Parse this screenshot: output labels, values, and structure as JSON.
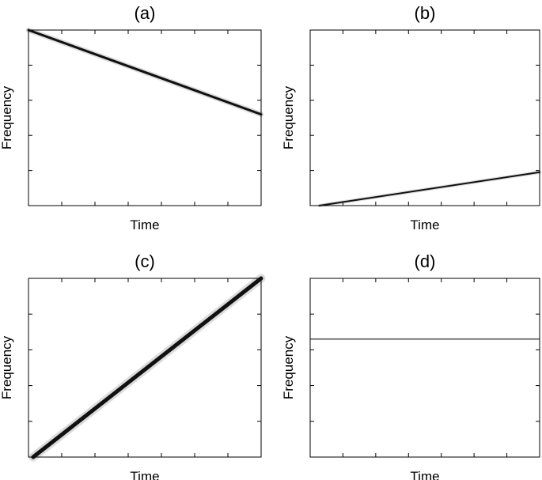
{
  "chart_data": [
    {
      "type": "line",
      "title": "(a)",
      "xlabel": "Time",
      "ylabel": "Frequency",
      "xlim": [
        0,
        1
      ],
      "ylim": [
        0,
        1
      ],
      "grid": false,
      "series": [
        {
          "x": [
            0.0,
            1.0
          ],
          "y": [
            1.0,
            0.52
          ],
          "color": "#111111",
          "width": 3
        }
      ]
    },
    {
      "type": "line",
      "title": "(b)",
      "xlabel": "Time",
      "ylabel": "Frequency",
      "xlim": [
        0,
        1
      ],
      "ylim": [
        0,
        1
      ],
      "grid": false,
      "series": [
        {
          "x": [
            0.04,
            1.0
          ],
          "y": [
            0.0,
            0.19
          ],
          "color": "#111111",
          "width": 2
        }
      ]
    },
    {
      "type": "line",
      "title": "(c)",
      "xlabel": "Time",
      "ylabel": "Frequency",
      "xlim": [
        0,
        1
      ],
      "ylim": [
        0,
        1
      ],
      "grid": false,
      "series": [
        {
          "x": [
            0.02,
            1.0
          ],
          "y": [
            0.0,
            1.0
          ],
          "color": "#111111",
          "width": 5
        }
      ]
    },
    {
      "type": "line",
      "title": "(d)",
      "xlabel": "Time",
      "ylabel": "Frequency",
      "xlim": [
        0,
        1
      ],
      "ylim": [
        0,
        1
      ],
      "grid": false,
      "series": [
        {
          "x": [
            0.0,
            1.0
          ],
          "y": [
            0.66,
            0.66
          ],
          "color": "#333333",
          "width": 1.2
        }
      ]
    }
  ]
}
